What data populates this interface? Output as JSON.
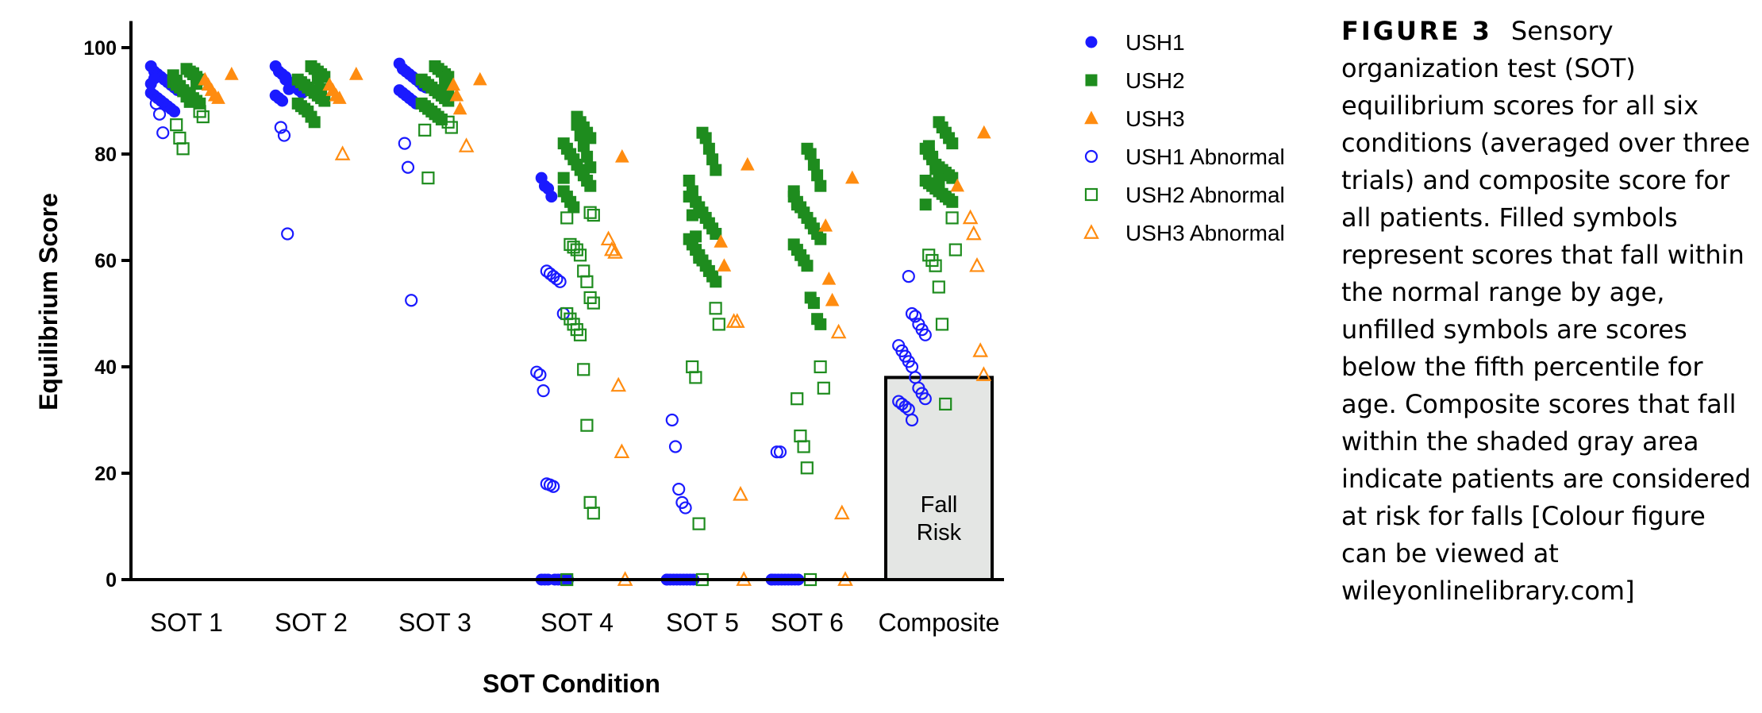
{
  "caption": {
    "label": "FIGURE 3",
    "text": "Sensory organization test (SOT) equilibrium scores for all six conditions (averaged over three trials) and composite score for all patients. Filled symbols represent scores that fall within the normal range by age, unfilled symbols are scores below the fifth percentile for age. Composite scores that fall within the shaded gray area indicate patients are considered at risk for falls [Colour figure can be viewed at wileyonlinelibrary.com]"
  },
  "chart_data": {
    "type": "scatter",
    "xlabel": "SOT Condition",
    "ylabel": "Equilibrium Score",
    "categories": [
      "SOT 1",
      "SOT 2",
      "SOT 3",
      "SOT 4",
      "SOT 5",
      "SOT 6",
      "Composite"
    ],
    "ylim": [
      0,
      105
    ],
    "yticks": [
      0,
      20,
      40,
      60,
      80,
      100
    ],
    "legend_position": "right",
    "colors": {
      "blue": "#1a1aff",
      "green": "#1e8c1e",
      "orange": "#ff8c10"
    },
    "fall_risk": {
      "label_line1": "Fall",
      "label_line2": "Risk",
      "category": "Composite",
      "threshold": 38,
      "fill": "#e4e6e4"
    },
    "series": [
      {
        "name": "USH1",
        "marker": "circle",
        "filled": true,
        "color": "#1a1aff",
        "points": {
          "SOT 1": [
            96.5,
            95.5,
            95,
            94.5,
            94,
            93.5,
            93,
            92.5,
            92,
            91.5,
            91,
            90.5,
            90,
            89.5,
            89,
            88.5,
            88,
            92.8,
            93.2,
            94.2
          ],
          "SOT 2": [
            96.5,
            95.5,
            95,
            94,
            93.5,
            93,
            92.5,
            92,
            91.5,
            91,
            90.5,
            90,
            94.5,
            92.2
          ],
          "SOT 3": [
            97,
            96,
            95.5,
            95,
            94.5,
            94,
            93.5,
            93,
            92.5,
            92,
            91.5,
            91,
            90.5,
            90,
            89.5,
            93.8,
            92.8
          ],
          "SOT 4": [
            75.5,
            74,
            73.5,
            72,
            0,
            0,
            0,
            0,
            0,
            0,
            0,
            0
          ],
          "SOT 5": [
            0,
            0,
            0,
            0,
            0,
            0,
            0,
            0,
            0,
            0
          ],
          "SOT 6": [
            0,
            0,
            0,
            0,
            0,
            0,
            0,
            0,
            0,
            0
          ]
        }
      },
      {
        "name": "USH2",
        "marker": "square",
        "filled": true,
        "color": "#1e8c1e",
        "points": {
          "SOT 1": [
            96,
            95.5,
            95,
            94.5,
            94,
            93.5,
            93,
            92.5,
            92,
            91.5,
            91,
            90.5,
            90,
            89.5,
            94.8,
            93.8,
            92.8,
            91.8,
            90.8,
            89.8,
            95.2,
            93.2
          ],
          "SOT 2": [
            96.5,
            96,
            95.5,
            95,
            94.5,
            94,
            93.5,
            93,
            92.5,
            92,
            91.5,
            91,
            90.5,
            90,
            89.5,
            89,
            88.5,
            88,
            87,
            86,
            94.2,
            92.2
          ],
          "SOT 3": [
            96.5,
            96,
            95.5,
            95,
            94.5,
            94,
            93.5,
            93,
            92.5,
            92,
            91.5,
            91,
            90.5,
            90,
            89.5,
            89,
            88.5,
            88,
            87.5,
            87,
            86.5,
            93.2,
            91.2
          ],
          "SOT 4": [
            87,
            86,
            85,
            84,
            83,
            82,
            81,
            80,
            79,
            78,
            77,
            76,
            75,
            74,
            73,
            72,
            71,
            70,
            85.5,
            83.5,
            81.5,
            79.5,
            77.5,
            75.5
          ],
          "SOT 5": [
            84,
            83,
            81,
            79,
            77,
            75,
            73,
            71,
            70,
            69,
            68,
            67,
            66,
            65,
            64,
            63,
            62,
            61,
            60,
            59,
            58,
            57,
            56,
            72,
            68.5,
            64.5,
            60.5
          ],
          "SOT 6": [
            81,
            80,
            78,
            76,
            74,
            72,
            71,
            70,
            69,
            68,
            67,
            66,
            65,
            64,
            63,
            62,
            61,
            60,
            59,
            53,
            52,
            49,
            48,
            73,
            70.5
          ],
          "Composite": [
            86,
            85,
            84,
            83,
            82,
            81,
            80,
            79,
            78,
            77.5,
            77,
            76.5,
            76,
            75.5,
            75,
            74.5,
            74,
            73.5,
            73,
            72.5,
            72,
            71.5,
            71,
            70.5,
            81.5,
            79.5,
            77.2,
            75.2
          ]
        }
      },
      {
        "name": "USH3",
        "marker": "triangle",
        "filled": true,
        "color": "#ff8c10",
        "points": {
          "SOT 1": [
            95,
            94,
            93,
            92,
            91,
            90.5
          ],
          "SOT 2": [
            95,
            93,
            92,
            91,
            90.5
          ],
          "SOT 3": [
            94,
            93,
            91,
            88.5
          ],
          "SOT 4": [
            79.5
          ],
          "SOT 5": [
            78,
            63.5,
            59
          ],
          "SOT 6": [
            75.5,
            66.5,
            56.5,
            52.5
          ],
          "Composite": [
            84,
            74
          ]
        }
      },
      {
        "name": "USH1 Abnormal",
        "marker": "circle",
        "filled": false,
        "color": "#1a1aff",
        "points": {
          "SOT 1": [
            89.5,
            87.5,
            84
          ],
          "SOT 2": [
            85,
            83.5,
            65
          ],
          "SOT 3": [
            82,
            77.5,
            52.5
          ],
          "SOT 4": [
            58,
            57.5,
            57,
            56.5,
            56,
            50,
            39,
            38.5,
            35.5,
            18,
            17.8,
            17.5
          ],
          "SOT 5": [
            30,
            25,
            17,
            14.5,
            13.5
          ],
          "SOT 6": [
            24,
            24
          ],
          "Composite": [
            57,
            50,
            49.5,
            48,
            47,
            46,
            44,
            43,
            42,
            41,
            40,
            38,
            36,
            35,
            34,
            33.5,
            33,
            32.5,
            32,
            30
          ]
        }
      },
      {
        "name": "USH2 Abnormal",
        "marker": "square",
        "filled": false,
        "color": "#1e8c1e",
        "points": {
          "SOT 1": [
            88,
            87,
            85.5,
            83,
            81
          ],
          "SOT 2": [],
          "SOT 3": [
            86,
            85,
            84.5,
            75.5
          ],
          "SOT 4": [
            69,
            68.5,
            68,
            63,
            62.5,
            62,
            61,
            58,
            56,
            53,
            52,
            50,
            49,
            48,
            47,
            46,
            39.5,
            29,
            14.5,
            12.5,
            0
          ],
          "SOT 5": [
            51,
            48,
            40,
            38,
            10.5,
            0
          ],
          "SOT 6": [
            40,
            36,
            34,
            27,
            25,
            21,
            0
          ],
          "Composite": [
            68,
            62,
            61,
            60,
            59,
            55,
            48,
            33
          ]
        }
      },
      {
        "name": "USH3 Abnormal",
        "marker": "triangle",
        "filled": false,
        "color": "#ff8c10",
        "points": {
          "SOT 1": [],
          "SOT 2": [
            80
          ],
          "SOT 3": [
            81.5
          ],
          "SOT 4": [
            64,
            62,
            61.5,
            36.5,
            24,
            0
          ],
          "SOT 5": [
            48.5,
            48.5,
            16,
            0
          ],
          "SOT 6": [
            46.5,
            12.5,
            0
          ],
          "Composite": [
            68,
            65,
            59,
            43,
            38.5
          ]
        }
      }
    ]
  }
}
